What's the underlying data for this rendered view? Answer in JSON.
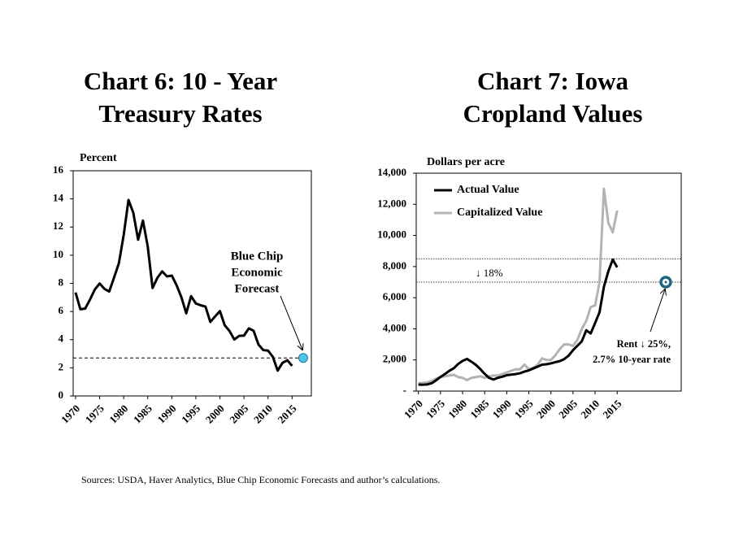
{
  "chart_data": [
    {
      "type": "line",
      "title": [
        "Chart 6: 10 - Year",
        "Treasury Rates"
      ],
      "ylabel": "Percent",
      "x": [
        1970,
        1971,
        1972,
        1973,
        1974,
        1975,
        1976,
        1977,
        1978,
        1979,
        1980,
        1981,
        1982,
        1983,
        1984,
        1985,
        1986,
        1987,
        1988,
        1989,
        1990,
        1991,
        1992,
        1993,
        1994,
        1995,
        1996,
        1997,
        1998,
        1999,
        2000,
        2001,
        2002,
        2003,
        2004,
        2005,
        2006,
        2007,
        2008,
        2009,
        2010,
        2011,
        2012,
        2013,
        2014,
        2015
      ],
      "series": [
        {
          "color": "#000000",
          "values": [
            7.35,
            6.16,
            6.21,
            6.85,
            7.56,
            7.99,
            7.61,
            7.42,
            8.41,
            9.43,
            11.43,
            13.92,
            13.01,
            11.1,
            12.46,
            10.62,
            7.67,
            8.39,
            8.85,
            8.49,
            8.55,
            7.86,
            7.01,
            5.87,
            7.09,
            6.57,
            6.44,
            6.35,
            5.26,
            5.65,
            6.03,
            5.02,
            4.61,
            4.01,
            4.27,
            4.29,
            4.8,
            4.63,
            3.66,
            3.26,
            3.22,
            2.78,
            1.8,
            2.35,
            2.54,
            2.14
          ]
        }
      ],
      "xlim": [
        1969.5,
        2019
      ],
      "xticks": [
        1970,
        1975,
        1980,
        1985,
        1990,
        1995,
        2000,
        2005,
        2010,
        2015
      ],
      "ylim": [
        0,
        16
      ],
      "yticks": [
        0,
        2,
        4,
        6,
        8,
        10,
        12,
        14,
        16
      ],
      "reference_lines": [
        2.7
      ],
      "reference_style": "dashed",
      "forecast_point": {
        "x": 2017.3,
        "y": 2.7,
        "color": "#4fc3e8"
      },
      "annotation": [
        "Blue Chip",
        "Economic",
        "Forecast"
      ]
    },
    {
      "type": "line",
      "title": [
        "Chart 7: Iowa",
        "Cropland Values"
      ],
      "ylabel": "Dollars per acre",
      "x": [
        1970,
        1971,
        1972,
        1973,
        1974,
        1975,
        1976,
        1977,
        1978,
        1979,
        1980,
        1981,
        1982,
        1983,
        1984,
        1985,
        1986,
        1987,
        1988,
        1989,
        1990,
        1991,
        1992,
        1993,
        1994,
        1995,
        1996,
        1997,
        1998,
        1999,
        2000,
        2001,
        2002,
        2003,
        2004,
        2005,
        2006,
        2007,
        2008,
        2009,
        2010,
        2011,
        2012,
        2013,
        2014,
        2015
      ],
      "series": [
        {
          "name": "Actual Value",
          "color": "#000000",
          "values": [
            419,
            408,
            426,
            504,
            693,
            909,
            1095,
            1303,
            1464,
            1741,
            1940,
            2066,
            1889,
            1684,
            1418,
            1104,
            848,
            736,
            853,
            922,
            1020,
            1057,
            1090,
            1147,
            1249,
            1332,
            1453,
            1570,
            1700,
            1723,
            1781,
            1857,
            1926,
            2052,
            2275,
            2629,
            2914,
            3204,
            3908,
            3700,
            4371,
            5064,
            6708,
            7700,
            8450,
            7950
          ]
        },
        {
          "name": "Capitalized Value",
          "color": "#b3b3b3",
          "values": [
            500,
            520,
            560,
            650,
            800,
            900,
            950,
            1000,
            1050,
            900,
            850,
            700,
            850,
            900,
            950,
            850,
            950,
            1000,
            1000,
            1100,
            1200,
            1300,
            1400,
            1400,
            1700,
            1400,
            1500,
            1700,
            2100,
            2000,
            2000,
            2300,
            2700,
            3000,
            3000,
            2900,
            3300,
            4000,
            4500,
            5400,
            5500,
            7000,
            13000,
            10800,
            10200,
            11600
          ]
        }
      ],
      "xlim": [
        1969.5,
        2029.5
      ],
      "xticks": [
        1970,
        1975,
        1980,
        1985,
        1990,
        1995,
        2000,
        2005,
        2010,
        2015
      ],
      "ylim": [
        0,
        14000
      ],
      "yticks": [
        {
          "value": 0,
          "label": "-"
        },
        {
          "value": 2000,
          "label": "2,000"
        },
        {
          "value": 4000,
          "label": "4,000"
        },
        {
          "value": 6000,
          "label": "6,000"
        },
        {
          "value": 8000,
          "label": "8,000"
        },
        {
          "value": 10000,
          "label": "10,000"
        },
        {
          "value": 12000,
          "label": "12,000"
        },
        {
          "value": 14000,
          "label": "14,000"
        }
      ],
      "reference_lines": [
        8500,
        7000
      ],
      "reference_style": "dotted",
      "reference_note": "↓ 18%",
      "forecast_point": {
        "x": 2026,
        "y": 7000,
        "color": "#1f6680"
      },
      "annotation": [
        "Rent ↓ 25%,",
        "2.7% 10-year rate"
      ],
      "legend": "upper left"
    }
  ],
  "source": "Sources: USDA, Haver Analytics, Blue Chip Economic Forecasts and author’s calculations."
}
